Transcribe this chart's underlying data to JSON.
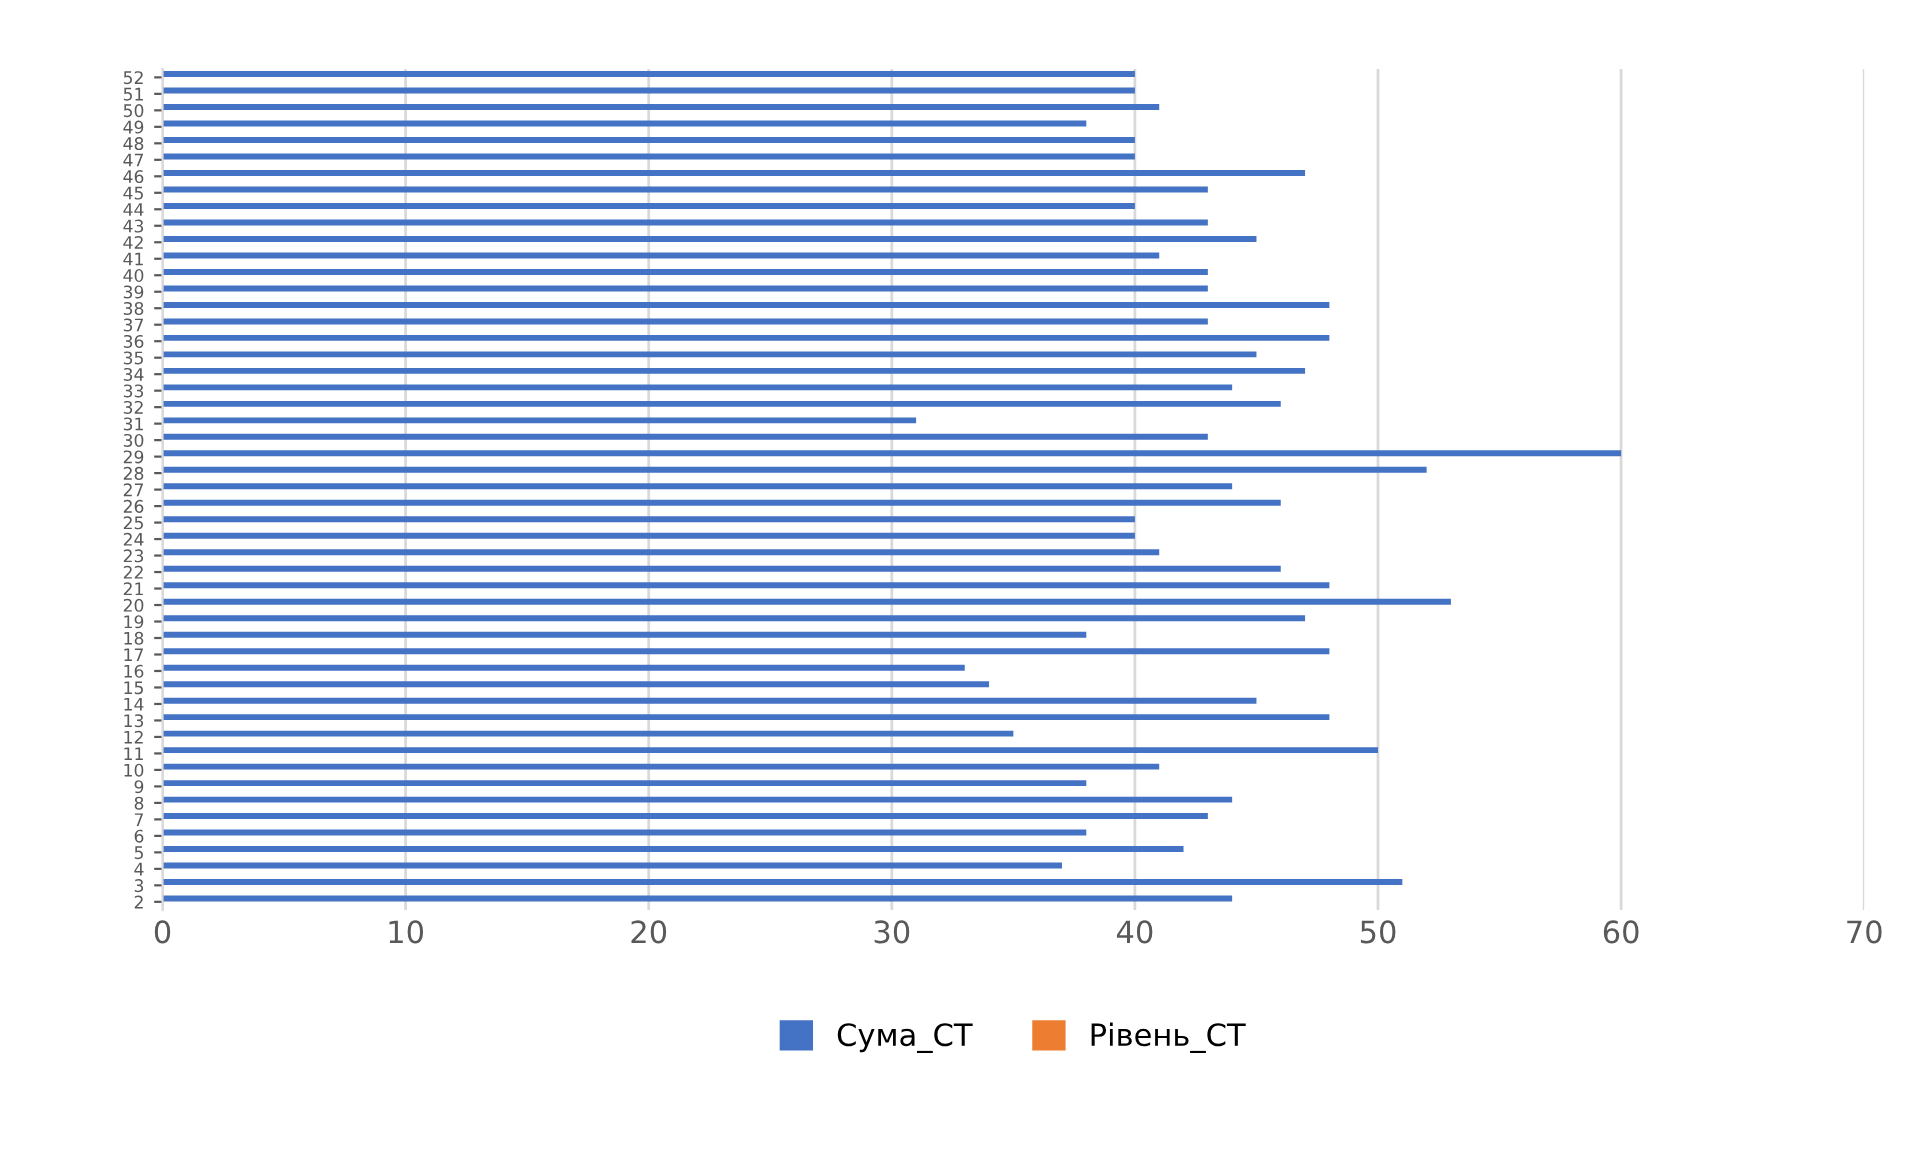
{
  "chart_data": {
    "type": "bar",
    "orientation": "horizontal",
    "categories": [
      "52",
      "51",
      "50",
      "49",
      "48",
      "47",
      "46",
      "45",
      "44",
      "43",
      "42",
      "41",
      "40",
      "39",
      "38",
      "37",
      "36",
      "35",
      "34",
      "33",
      "32",
      "31",
      "30",
      "29",
      "28",
      "27",
      "26",
      "25",
      "24",
      "23",
      "22",
      "21",
      "20",
      "19",
      "18",
      "17",
      "16",
      "15",
      "14",
      "13",
      "12",
      "11",
      "10",
      "9",
      "8",
      "7",
      "6",
      "5",
      "4",
      "3",
      "2"
    ],
    "series": [
      {
        "name": "Сума_СТ",
        "color": "#4472c4",
        "values": [
          40,
          40,
          41,
          38,
          40,
          40,
          47,
          43,
          40,
          43,
          45,
          41,
          43,
          43,
          48,
          43,
          48,
          45,
          47,
          44,
          46,
          31,
          43,
          60,
          52,
          44,
          46,
          40,
          40,
          41,
          46,
          48,
          53,
          47,
          38,
          48,
          33,
          34,
          45,
          48,
          35,
          50,
          41,
          38,
          44,
          43,
          38,
          42,
          37,
          51,
          44
        ]
      },
      {
        "name": "Рівень_СТ",
        "color": "#ed7d31",
        "values": [
          null,
          null,
          null,
          null,
          null,
          null,
          null,
          null,
          null,
          null,
          null,
          null,
          null,
          null,
          null,
          null,
          null,
          null,
          null,
          null,
          null,
          null,
          null,
          null,
          null,
          null,
          null,
          null,
          null,
          null,
          null,
          null,
          null,
          null,
          null,
          null,
          null,
          null,
          null,
          null,
          null,
          null,
          null,
          null,
          null,
          null,
          null,
          null,
          null,
          null,
          null
        ]
      }
    ],
    "xlim": [
      0,
      70
    ],
    "xticks": [
      0,
      10,
      20,
      30,
      40,
      50,
      60,
      70
    ],
    "grid": "x",
    "legend": "bottom"
  }
}
